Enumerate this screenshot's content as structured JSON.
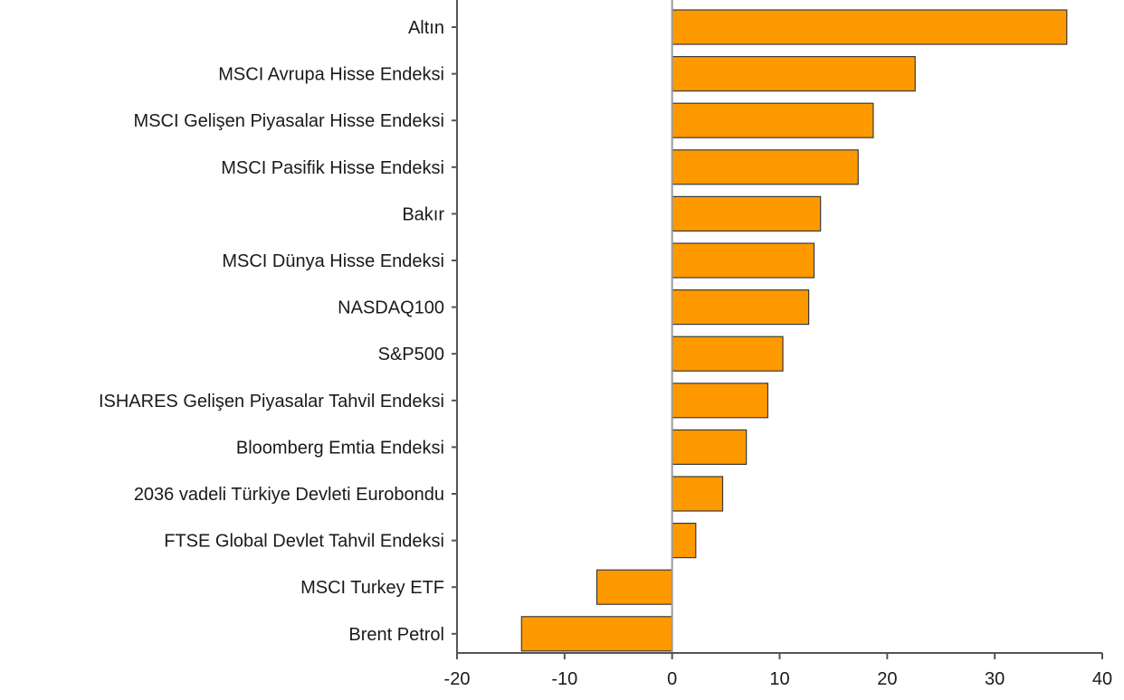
{
  "chart_data": {
    "type": "bar",
    "orientation": "horizontal",
    "title": "",
    "xlabel": "",
    "ylabel": "",
    "xlim": [
      -20,
      40
    ],
    "xticks": [
      -20,
      -10,
      0,
      10,
      20,
      30,
      40
    ],
    "grid": false,
    "legend": "none",
    "categories": [
      "Altın",
      "MSCI Avrupa Hisse Endeksi",
      "MSCI Gelişen Piyasalar Hisse Endeksi",
      "MSCI Pasifik Hisse Endeksi",
      "Bakır",
      "MSCI Dünya Hisse Endeksi",
      "NASDAQ100",
      "S&P500",
      "ISHARES Gelişen Piyasalar Tahvil Endeksi",
      "Bloomberg Emtia Endeksi",
      "2036 vadeli Türkiye Devleti Eurobondu",
      "FTSE Global Devlet Tahvil Endeksi",
      "MSCI Turkey ETF",
      "Brent Petrol"
    ],
    "values": [
      36.7,
      22.6,
      18.7,
      17.3,
      13.8,
      13.2,
      12.7,
      10.3,
      8.9,
      6.9,
      4.7,
      2.2,
      -7.0,
      -14.0
    ],
    "colors": {
      "bar_fill": "#FF9900",
      "bar_stroke": "#3a3a3a",
      "axis": "#555555",
      "zero_line": "#9a9a9a"
    }
  }
}
